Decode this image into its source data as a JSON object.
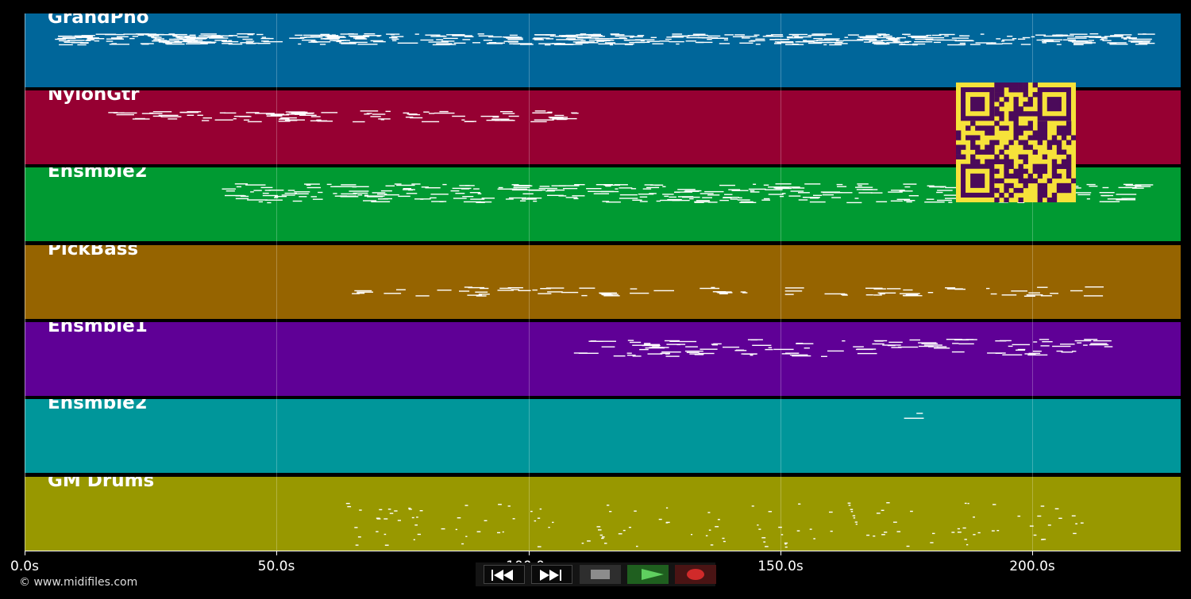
{
  "tracks": [
    {
      "name": "GrandPno",
      "color": "#00669a"
    },
    {
      "name": "NylonGtr",
      "color": "#960032"
    },
    {
      "name": "Ensmble2",
      "color": "#009a32"
    },
    {
      "name": "PickBass",
      "color": "#966400"
    },
    {
      "name": "Ensmble1",
      "color": "#5f0096"
    },
    {
      "name": "Ensmble2",
      "color": "#00969a"
    },
    {
      "name": "GM Drums",
      "color": "#989800"
    }
  ],
  "timeline": {
    "ticks": [
      "0.0s",
      "50.0s",
      "100.0s",
      "150.0s",
      "200.0s"
    ]
  },
  "footer": {
    "copyright": "© www.midifiles.com"
  },
  "transport": {
    "buttons": [
      {
        "name": "rewind-button",
        "icon": "rewind-icon"
      },
      {
        "name": "fast-forward-button",
        "icon": "fast-forward-icon"
      },
      {
        "name": "stop-button",
        "icon": "stop-icon"
      },
      {
        "name": "play-button",
        "icon": "play-icon"
      },
      {
        "name": "record-button",
        "icon": "record-icon"
      }
    ]
  },
  "overlay": {
    "icon": "qr-code-icon",
    "colors": {
      "bg": "#f6e23a",
      "fg": "#4b0a5a"
    }
  }
}
